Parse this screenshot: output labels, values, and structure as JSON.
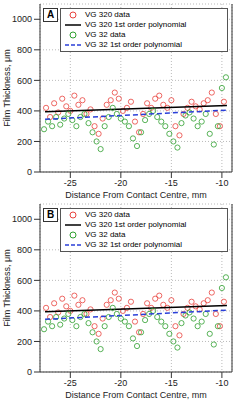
{
  "chart_data": [
    {
      "type": "scatter",
      "title": "A",
      "x_label": "Distance From Contact Centre, mm",
      "y_label": "Film Thickness, μm",
      "xlim": [
        -28,
        -9
      ],
      "xticks": [
        -25,
        -20,
        -15,
        -10
      ],
      "ylim": [
        0,
        1100
      ],
      "yticks": [
        0,
        200,
        400,
        600,
        800,
        1000
      ],
      "grid": true,
      "legend": "upper right",
      "series": [
        {
          "name": "VG 320 data",
          "type": "scatter",
          "color": "#e8413c",
          "marker": "circle",
          "x": [
            -27.4,
            -27.0,
            -26.6,
            -26.2,
            -25.8,
            -25.4,
            -25.0,
            -24.6,
            -24.2,
            -23.8,
            -23.4,
            -23.0,
            -22.6,
            -22.2,
            -21.8,
            -21.4,
            -21.0,
            -20.6,
            -20.2,
            -19.8,
            -19.4,
            -19.0,
            -18.6,
            -18.2,
            -17.8,
            -17.4,
            -17.0,
            -16.6,
            -16.2,
            -15.8,
            -15.4,
            -15.0,
            -14.6,
            -14.2,
            -13.8,
            -13.4,
            -13.0,
            -12.6,
            -12.2,
            -11.8,
            -11.4,
            -11.0,
            -10.6,
            -10.2,
            -9.8
          ],
          "values": [
            420,
            360,
            450,
            390,
            480,
            430,
            400,
            500,
            440,
            470,
            380,
            410,
            300,
            250,
            350,
            440,
            470,
            520,
            480,
            400,
            420,
            460,
            330,
            260,
            380,
            450,
            420,
            480,
            500,
            440,
            420,
            470,
            300,
            240,
            380,
            420,
            460,
            430,
            410,
            450,
            470,
            520,
            380,
            300,
            460
          ]
        },
        {
          "name": "VG 320 1st order polynomial",
          "type": "line",
          "color": "#000000",
          "line_style": "solid",
          "x": [
            -27.5,
            -9.5
          ],
          "values": [
            395,
            435
          ]
        },
        {
          "name": "VG 32 data",
          "type": "scatter",
          "color": "#2ea02e",
          "marker": "circle",
          "x": [
            -27.6,
            -27.2,
            -26.8,
            -26.4,
            -26.0,
            -25.6,
            -25.2,
            -24.8,
            -24.4,
            -24.0,
            -23.6,
            -23.2,
            -22.8,
            -22.4,
            -22.0,
            -21.6,
            -21.2,
            -20.8,
            -20.4,
            -20.0,
            -19.6,
            -19.2,
            -18.8,
            -18.4,
            -18.0,
            -17.6,
            -17.2,
            -16.8,
            -16.4,
            -16.0,
            -15.6,
            -15.2,
            -14.8,
            -14.4,
            -14.0,
            -13.6,
            -13.2,
            -12.8,
            -12.4,
            -12.0,
            -11.6,
            -11.2,
            -10.8,
            -10.4,
            -10.0,
            -9.6
          ],
          "values": [
            280,
            330,
            300,
            360,
            310,
            350,
            380,
            340,
            300,
            360,
            380,
            320,
            260,
            200,
            150,
            300,
            360,
            420,
            380,
            350,
            330,
            300,
            220,
            170,
            260,
            340,
            380,
            400,
            360,
            330,
            300,
            250,
            200,
            160,
            320,
            370,
            390,
            350,
            300,
            330,
            380,
            250,
            180,
            300,
            550,
            620
          ]
        },
        {
          "name": "VG 32 1st order polynomial",
          "type": "line",
          "color": "#2a3fd8",
          "line_style": "dashed",
          "x": [
            -27.5,
            -9.5
          ],
          "values": [
            345,
            405
          ]
        }
      ]
    },
    {
      "type": "scatter",
      "title": "B",
      "x_label": "Distance From Contact Centre, mm",
      "y_label": "Film Thickness, μm",
      "xlim": [
        -28,
        -9
      ],
      "xticks": [
        -25,
        -20,
        -15,
        -10
      ],
      "ylim": [
        0,
        1100
      ],
      "yticks": [
        0,
        200,
        400,
        600,
        800,
        1000
      ],
      "grid": true,
      "legend": "upper right",
      "series": [
        {
          "name": "VG 320 data",
          "type": "scatter",
          "color": "#e8413c",
          "marker": "circle",
          "x": [
            -27.4,
            -27.0,
            -26.6,
            -26.2,
            -25.8,
            -25.4,
            -25.0,
            -24.6,
            -24.2,
            -23.8,
            -23.4,
            -23.0,
            -22.6,
            -22.2,
            -21.8,
            -21.4,
            -21.0,
            -20.6,
            -20.2,
            -19.8,
            -19.4,
            -19.0,
            -18.6,
            -18.2,
            -17.8,
            -17.4,
            -17.0,
            -16.6,
            -16.2,
            -15.8,
            -15.4,
            -15.0,
            -14.6,
            -14.2,
            -13.8,
            -13.4,
            -13.0,
            -12.6,
            -12.2,
            -11.8,
            -11.4,
            -11.0,
            -10.6,
            -10.2,
            -9.8
          ],
          "values": [
            420,
            360,
            450,
            390,
            480,
            430,
            400,
            500,
            440,
            470,
            380,
            410,
            300,
            250,
            350,
            440,
            470,
            520,
            480,
            400,
            420,
            460,
            330,
            260,
            380,
            450,
            420,
            480,
            500,
            440,
            420,
            470,
            300,
            240,
            380,
            420,
            460,
            430,
            410,
            450,
            470,
            520,
            380,
            300,
            460
          ]
        },
        {
          "name": "VG 320 1st order polynomial",
          "type": "line",
          "color": "#000000",
          "line_style": "solid",
          "x": [
            -27.5,
            -9.5
          ],
          "values": [
            395,
            435
          ]
        },
        {
          "name": "VG 32 data",
          "type": "scatter",
          "color": "#2ea02e",
          "marker": "circle",
          "x": [
            -27.6,
            -27.2,
            -26.8,
            -26.4,
            -26.0,
            -25.6,
            -25.2,
            -24.8,
            -24.4,
            -24.0,
            -23.6,
            -23.2,
            -22.8,
            -22.4,
            -22.0,
            -21.6,
            -21.2,
            -20.8,
            -20.4,
            -20.0,
            -19.6,
            -19.2,
            -18.8,
            -18.4,
            -18.0,
            -17.6,
            -17.2,
            -16.8,
            -16.4,
            -16.0,
            -15.6,
            -15.2,
            -14.8,
            -14.4,
            -14.0,
            -13.6,
            -13.2,
            -12.8,
            -12.4,
            -12.0,
            -11.6,
            -11.2,
            -10.8,
            -10.4,
            -10.0,
            -9.6
          ],
          "values": [
            280,
            330,
            300,
            360,
            310,
            350,
            380,
            340,
            300,
            360,
            380,
            320,
            260,
            200,
            150,
            300,
            360,
            420,
            380,
            350,
            330,
            300,
            220,
            170,
            260,
            340,
            380,
            400,
            360,
            330,
            300,
            250,
            200,
            160,
            320,
            370,
            390,
            350,
            300,
            330,
            380,
            250,
            180,
            300,
            550,
            620
          ]
        },
        {
          "name": "VG 32 1st order polynomial",
          "type": "line",
          "color": "#2a3fd8",
          "line_style": "dashed",
          "x": [
            -27.5,
            -9.5
          ],
          "values": [
            345,
            405
          ]
        }
      ]
    }
  ]
}
